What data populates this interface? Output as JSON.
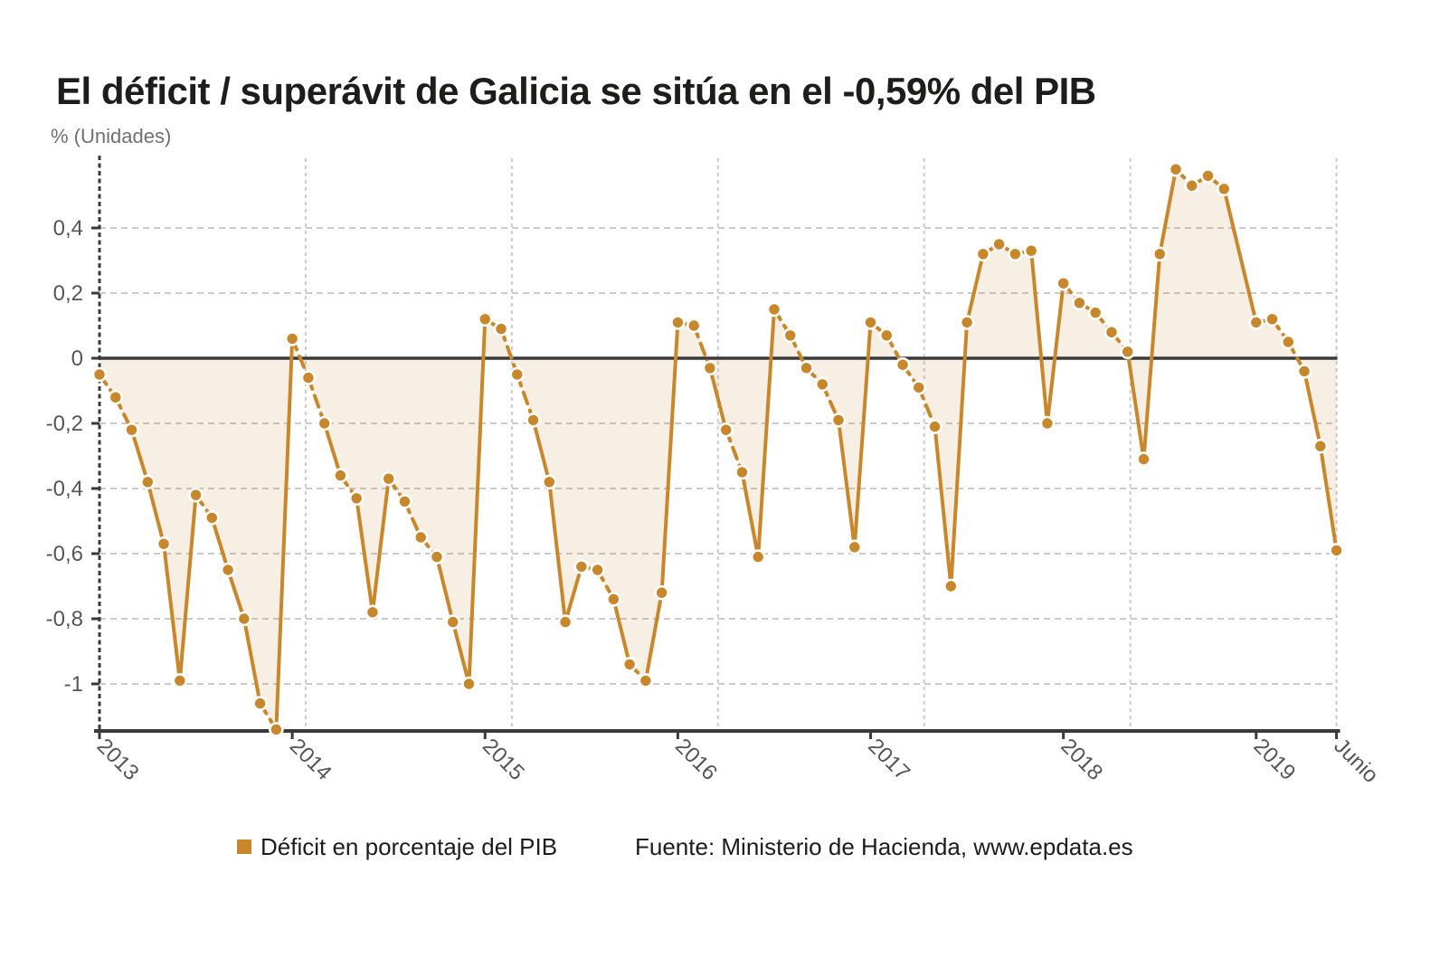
{
  "chart_data": {
    "type": "line",
    "title": "El déficit / superávit de Galicia se sitúa en el -0,59% del PIB",
    "ylabel": "% (Unidades)",
    "legend_label": "Déficit en porcentaje del PIB",
    "source": "Fuente: Ministerio de Hacienda, www.epdata.es",
    "legend_position": "bottom",
    "grid": true,
    "x_tick_labels": [
      "2013",
      "2014",
      "2015",
      "2016",
      "2017",
      "2018",
      "2019",
      "Junio"
    ],
    "y_tick_values": [
      0.4,
      0.2,
      0,
      -0.2,
      -0.4,
      -0.6,
      -0.8,
      -1
    ],
    "y_tick_labels": [
      "0,4",
      "0,2",
      "0",
      "-0,2",
      "-0,4",
      "-0,6",
      "-0,8",
      "-1"
    ],
    "ylim": [
      -1.145,
      0.615
    ],
    "x_range": "2013-01 to 2019-06, monthly",
    "missing_months": [
      "2018-12"
    ],
    "year_order": [
      "2013",
      "2014",
      "2015",
      "2016",
      "2017",
      "2018",
      "2019"
    ],
    "series_name": "Déficit en porcentaje del PIB",
    "series_by_year": {
      "2013": [
        -0.05,
        -0.12,
        -0.22,
        -0.38,
        -0.57,
        -0.99,
        -0.42,
        -0.49,
        -0.65,
        -0.8,
        -1.06,
        -1.14
      ],
      "2014": [
        0.06,
        -0.06,
        -0.2,
        -0.36,
        -0.43,
        -0.78,
        -0.37,
        -0.44,
        -0.55,
        -0.61,
        -0.81,
        -1.0
      ],
      "2015": [
        0.12,
        0.09,
        -0.05,
        -0.19,
        -0.38,
        -0.81,
        -0.64,
        -0.65,
        -0.74,
        -0.94,
        -0.99,
        -0.72
      ],
      "2016": [
        0.11,
        0.1,
        -0.03,
        -0.22,
        -0.35,
        -0.61,
        0.15,
        0.07,
        -0.03,
        -0.08,
        -0.19,
        -0.58
      ],
      "2017": [
        0.11,
        0.07,
        -0.02,
        -0.09,
        -0.21,
        -0.7,
        0.11,
        0.32,
        0.35,
        0.32,
        0.33,
        -0.2
      ],
      "2018": [
        0.23,
        0.17,
        0.14,
        0.08,
        0.02,
        -0.31,
        0.32,
        0.58,
        0.53,
        0.56,
        0.52,
        null
      ],
      "2019": [
        0.11,
        0.12,
        0.05,
        -0.04,
        -0.27,
        -0.59
      ]
    },
    "last_value_label": "-0,59",
    "colors": {
      "line": "#C8872B",
      "point": "#C8872B",
      "point_ring": "#ffffff",
      "fill": "rgba(200,135,43,0.13)",
      "grid": "#cbcbcb",
      "axis": "#3a3a3a",
      "zero_line": "#3a3a3a",
      "tick_text": "#565656",
      "title_text": "#1d1d1b"
    }
  }
}
